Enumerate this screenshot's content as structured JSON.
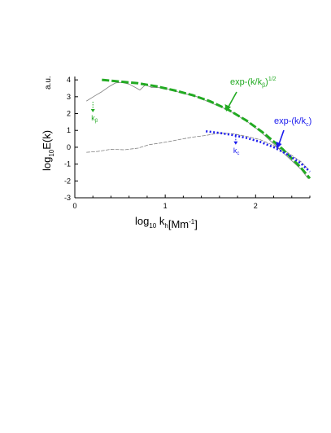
{
  "chart_data": {
    "type": "line",
    "xlabel": {
      "base": "log",
      "sub": "10",
      "var": " k",
      "var_sub": "h",
      "unit": "[Mm",
      "unit_sup": "-1",
      "unit_end": "]"
    },
    "ylabel": {
      "base": "log",
      "sub": "10",
      "rest": "E(k)",
      "unit": "a.u."
    },
    "xlim": [
      0,
      2.6
    ],
    "ylim": [
      -3,
      4.2
    ],
    "xticks": [
      0,
      1,
      2
    ],
    "yticks": [
      -3,
      -2,
      -1,
      0,
      1,
      2,
      3,
      4
    ],
    "grid": false,
    "series": [
      {
        "color": "#808080",
        "style": "solid-thin",
        "x": [
          0.13,
          0.22,
          0.3,
          0.38,
          0.45
        ],
        "y": [
          2.75,
          3.05,
          3.3,
          3.6,
          3.82
        ]
      },
      {
        "color": "#808080",
        "style": "solid-thin",
        "x": [
          0.45,
          0.52,
          0.6,
          0.67,
          0.72,
          0.78,
          0.85,
          0.92,
          1.0,
          1.1,
          1.2,
          1.35,
          1.5,
          1.7,
          1.9,
          2.05,
          2.2,
          2.35,
          2.5,
          2.58
        ],
        "y": [
          3.82,
          3.85,
          3.75,
          3.55,
          3.4,
          3.7,
          3.55,
          3.55,
          3.5,
          3.35,
          3.2,
          3.0,
          2.65,
          2.2,
          1.55,
          0.95,
          0.2,
          -0.55,
          -1.3,
          -1.85
        ]
      },
      {
        "color": "#808080",
        "style": "dashed-thin",
        "x": [
          0.13,
          0.25,
          0.4,
          0.55,
          0.7,
          0.82,
          0.95,
          1.05,
          1.15,
          1.3,
          1.45,
          1.6,
          1.75,
          1.9,
          2.05,
          2.2,
          2.35,
          2.5,
          2.58
        ],
        "y": [
          -0.3,
          -0.25,
          -0.12,
          -0.15,
          -0.05,
          0.15,
          0.25,
          0.35,
          0.45,
          0.6,
          0.7,
          0.85,
          0.8,
          0.65,
          0.45,
          0.1,
          -0.3,
          -0.85,
          -1.3
        ]
      },
      {
        "name": "exp-(k/kβ)^1/2",
        "color": "#22aa22",
        "style": "dashed-thick",
        "x": [
          0.3,
          0.5,
          0.7,
          0.9,
          1.1,
          1.3,
          1.5,
          1.7,
          1.9,
          2.1,
          2.3,
          2.5,
          2.6
        ],
        "y": [
          4.0,
          3.9,
          3.8,
          3.62,
          3.38,
          3.1,
          2.72,
          2.22,
          1.58,
          0.8,
          -0.12,
          -1.2,
          -1.85
        ]
      },
      {
        "name": "exp-(k/kc)",
        "color": "#1a1aee",
        "style": "dotted-thick",
        "x": [
          1.45,
          1.6,
          1.75,
          1.9,
          2.05,
          2.2,
          2.35,
          2.5,
          2.6
        ],
        "y": [
          0.95,
          0.85,
          0.72,
          0.55,
          0.32,
          0.0,
          -0.42,
          -0.95,
          -1.45
        ]
      }
    ],
    "annotations": {
      "k_beta": {
        "text": "k",
        "sub": "β",
        "color": "#22aa22",
        "x": 0.2,
        "y": 2.7
      },
      "k_c": {
        "text": "k",
        "sub": "c",
        "color": "#1a1aee",
        "x": 1.78,
        "y": 0.78
      },
      "label_beta": {
        "prefix": "exp-(k/k",
        "sub": "β",
        "suffix": ")",
        "sup": "1/2",
        "color": "#22aa22"
      },
      "label_c": {
        "prefix": "exp-(k/k",
        "sub": "c",
        "suffix": ")",
        "color": "#1a1aee"
      }
    }
  }
}
